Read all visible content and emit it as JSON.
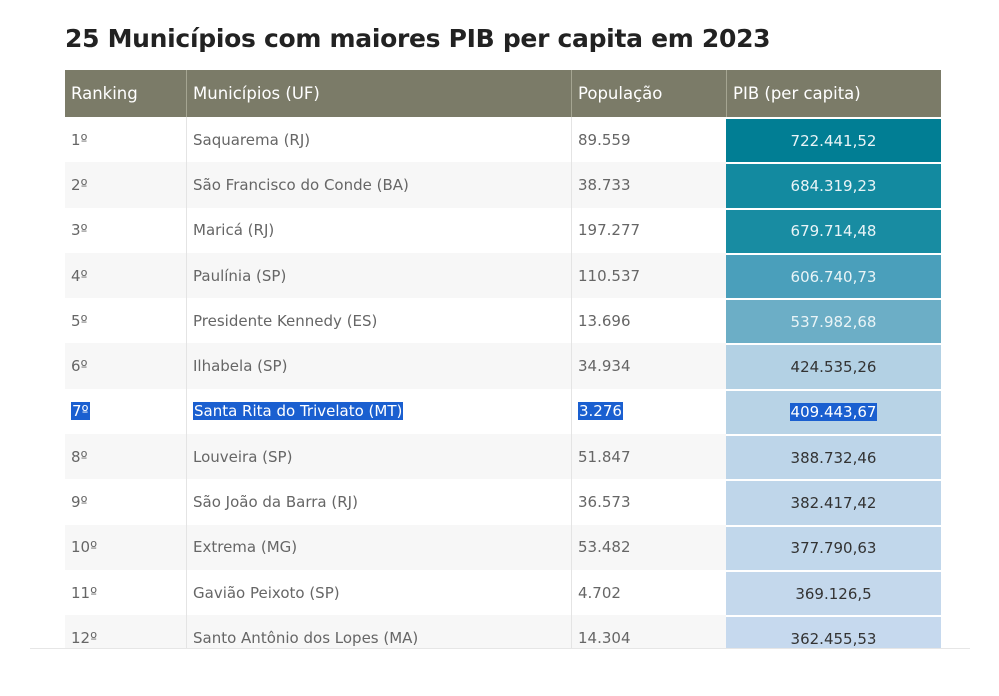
{
  "title": "25 Municípios com maiores PIB per capita em 2023",
  "table": {
    "headers": [
      "Ranking",
      "Municípios (UF)",
      "População",
      "PIB (per capita)"
    ],
    "rows": [
      {
        "rank": "1º",
        "city": "Saquarema (RJ)",
        "pop": "89.559",
        "pib": "722.441,52",
        "color": "#017e94",
        "light": true
      },
      {
        "rank": "2º",
        "city": "São Francisco do Conde (BA)",
        "pop": "38.733",
        "pib": "684.319,23",
        "color": "#138aa0",
        "light": true
      },
      {
        "rank": "3º",
        "city": "Maricá (RJ)",
        "pop": "197.277",
        "pib": "679.714,48",
        "color": "#188ca2",
        "light": true
      },
      {
        "rank": "4º",
        "city": "Paulínia (SP)",
        "pop": "110.537",
        "pib": "606.740,73",
        "color": "#4a9fbb",
        "light": true
      },
      {
        "rank": "5º",
        "city": "Presidente Kennedy (ES)",
        "pop": "13.696",
        "pib": "537.982,68",
        "color": "#6caec6",
        "light": true
      },
      {
        "rank": "6º",
        "city": "Ilhabela (SP)",
        "pop": "34.934",
        "pib": "424.535,26",
        "color": "#b3d1e4",
        "light": false
      },
      {
        "rank": "7º",
        "city": "Santa Rita do Trivelato (MT)",
        "pop": "3.276",
        "pib": "409.443,67",
        "color": "#b8d3e6",
        "light": false,
        "selected": true
      },
      {
        "rank": "8º",
        "city": "Louveira (SP)",
        "pop": "51.847",
        "pib": "388.732,46",
        "color": "#bdd5e9",
        "light": false
      },
      {
        "rank": "9º",
        "city": "São João da Barra (RJ)",
        "pop": "36.573",
        "pib": "382.417,42",
        "color": "#bfd6ea",
        "light": false
      },
      {
        "rank": "10º",
        "city": "Extrema (MG)",
        "pop": "53.482",
        "pib": "377.790,63",
        "color": "#c1d7eb",
        "light": false
      },
      {
        "rank": "11º",
        "city": "Gavião Peixoto (SP)",
        "pop": "4.702",
        "pib": "369.126,5",
        "color": "#c4d8ec",
        "light": false
      },
      {
        "rank": "12º",
        "city": "Santo Antônio dos Lopes (MA)",
        "pop": "14.304",
        "pib": "362.455,53",
        "color": "#c6d9ee",
        "light": false
      }
    ]
  }
}
